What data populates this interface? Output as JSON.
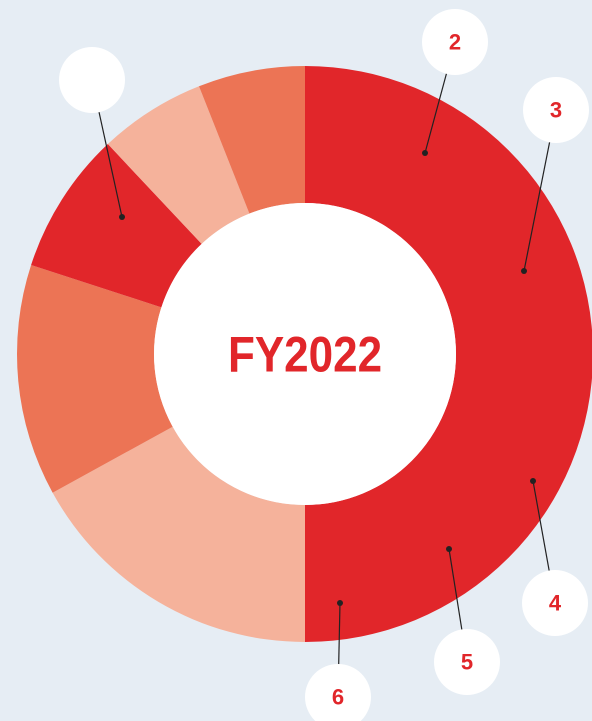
{
  "chart_data": {
    "type": "donut",
    "center_label": "FY2022",
    "categories": [
      null,
      "2",
      "3",
      "4",
      "5",
      "6"
    ],
    "values": [
      50,
      17,
      13,
      8,
      6,
      6
    ],
    "colors": [
      "#e1262a",
      "#f5b29b",
      "#ec7455",
      "#e1262a",
      "#f5b29b",
      "#ec7455"
    ]
  }
}
